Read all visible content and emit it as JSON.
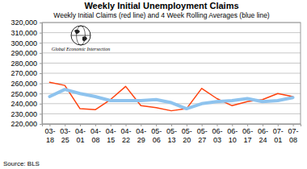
{
  "chart_data": {
    "type": "line",
    "title": "Weekly Initial Unemployment Claims",
    "subtitle": "Weekly Initial Claims (red line) and 4 Week Rolling Averages (blue line)",
    "annotations": [
      "Global Economic Intersection",
      "Source: BLS"
    ],
    "categories": [
      "03-18",
      "03-25",
      "04-01",
      "04-08",
      "04-15",
      "04-22",
      "04-29",
      "05-06",
      "05-13",
      "05-20",
      "05-27",
      "06-03",
      "06-10",
      "06-17",
      "06-24",
      "07-01",
      "07-08"
    ],
    "series": [
      {
        "color": "#ff420e",
        "values": [
          261000,
          258000,
          235000,
          234000,
          244000,
          257000,
          238000,
          236000,
          233000,
          235000,
          255000,
          245000,
          238000,
          242000,
          244000,
          250000,
          247000
        ]
      },
      {
        "color": "#8ec3ee",
        "values": [
          247000,
          254000,
          250000,
          247000,
          243000,
          243000,
          243000,
          244000,
          241000,
          235000,
          240000,
          242000,
          243000,
          245000,
          242000,
          243000,
          246000
        ]
      }
    ],
    "ylim": [
      220000,
      320000
    ],
    "yticks": [
      {
        "value": 220000,
        "label": "220,000"
      },
      {
        "value": 230000,
        "label": "230,000"
      },
      {
        "value": 240000,
        "label": "240,000"
      },
      {
        "value": 250000,
        "label": "250,000"
      },
      {
        "value": 260000,
        "label": "260,000"
      },
      {
        "value": 270000,
        "label": "270,000"
      },
      {
        "value": 280000,
        "label": "280,000"
      },
      {
        "value": 290000,
        "label": "290,000"
      },
      {
        "value": 300000,
        "label": "300,000"
      },
      {
        "value": 310000,
        "label": "310,000"
      },
      {
        "value": 320000,
        "label": "320,000"
      }
    ],
    "grid": true
  }
}
